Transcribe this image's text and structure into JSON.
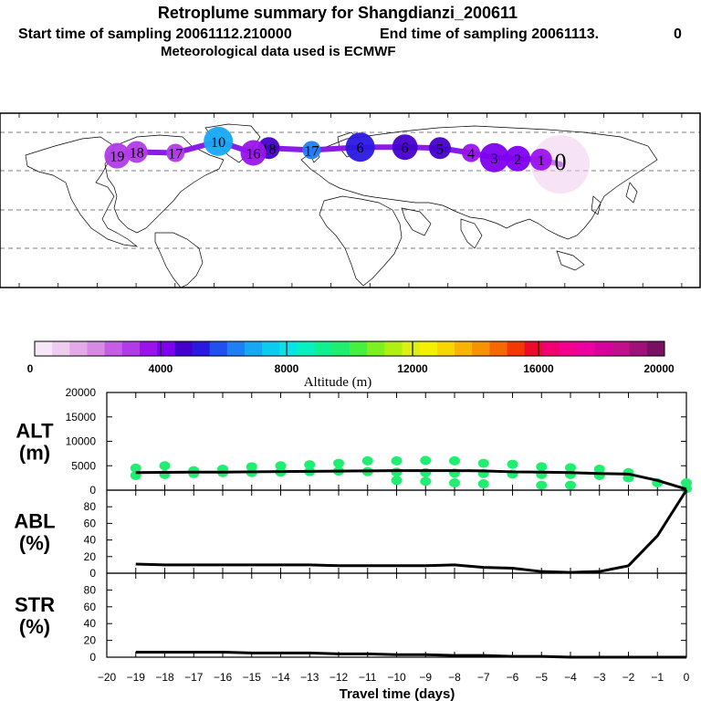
{
  "header": {
    "title": "Retroplume summary for Shangdianzi_200611",
    "start_label": "Start time of sampling 20061112.210000",
    "end_label": "End time of sampling 20061113.",
    "end_suffix": "0",
    "met_label": "Meteorological data used is ECMWF"
  },
  "colorbar": {
    "colors": [
      "#f7e6f7",
      "#eeccef",
      "#e3a9e8",
      "#d68ae4",
      "#c45ee6",
      "#b23be8",
      "#9a13ec",
      "#7f00f0",
      "#4400cc",
      "#2a19e0",
      "#2050f0",
      "#1f80f5",
      "#17a8f5",
      "#0ccbf0",
      "#07e3e6",
      "#07f0c0",
      "#10f090",
      "#20ee70",
      "#45f040",
      "#7ef020",
      "#b0f010",
      "#ddf010",
      "#f5f000",
      "#f8d600",
      "#f8b400",
      "#f89200",
      "#f86800",
      "#f53800",
      "#ee0a2a",
      "#f00070",
      "#f4008e",
      "#ec00a0",
      "#d8009c",
      "#c0108c",
      "#a0107a",
      "#7a1062"
    ],
    "tick_labels": [
      "0",
      "4000",
      "8000",
      "12000",
      "16000",
      "20000"
    ],
    "label": "Altitude (m)"
  },
  "map": {
    "plume_points": [
      {
        "lon": 108,
        "lat": 38,
        "age": "0",
        "alt": 800
      },
      {
        "lon": 98,
        "lat": 43,
        "age": "1",
        "alt": 3800
      },
      {
        "lon": 86,
        "lat": 44,
        "age": "2",
        "alt": 3900
      },
      {
        "lon": 74,
        "lat": 45,
        "age": "3",
        "alt": 3900
      },
      {
        "lon": 62,
        "lat": 50,
        "age": "4",
        "alt": 3700
      },
      {
        "lon": 46,
        "lat": 55,
        "age": "5",
        "alt": 4900
      },
      {
        "lon": 28,
        "lat": 56,
        "age": "6",
        "alt": 4700
      },
      {
        "lon": 5,
        "lat": 56,
        "age": "6",
        "alt": 5500
      },
      {
        "lon": -20,
        "lat": 53,
        "age": "17",
        "alt": 6200
      },
      {
        "lon": -42,
        "lat": 55,
        "age": "18",
        "alt": 4600
      },
      {
        "lon": -50,
        "lat": 50,
        "age": "16",
        "alt": 3500
      },
      {
        "lon": -68,
        "lat": 62,
        "age": "10",
        "alt": 6700
      },
      {
        "lon": -90,
        "lat": 50,
        "age": "17",
        "alt": 3000
      },
      {
        "lon": -110,
        "lat": 51,
        "age": "18",
        "alt": 3200
      },
      {
        "lon": -120,
        "lat": 47,
        "age": "19",
        "alt": 2800
      }
    ]
  },
  "chart_data": [
    {
      "type": "line",
      "panel": "ALT",
      "ylabel": "ALT\n(m)",
      "x": [
        -19,
        -18,
        -17,
        -16,
        -15,
        -14,
        -13,
        -12,
        -11,
        -10,
        -9,
        -8,
        -7,
        -6,
        -5,
        -4,
        -3,
        -2,
        -1,
        0
      ],
      "y": [
        3600,
        3650,
        3700,
        3700,
        3750,
        3800,
        3850,
        3900,
        3950,
        4000,
        4000,
        4000,
        3950,
        3750,
        3700,
        3600,
        3400,
        3300,
        2000,
        200
      ],
      "ylim": [
        0,
        20000
      ],
      "yticks": [
        "0",
        "5000",
        "10000",
        "15000",
        "20000"
      ],
      "scatter": {
        "color": "#20ee70",
        "points": [
          {
            "x": -19,
            "y": 3000
          },
          {
            "x": -19,
            "y": 4500
          },
          {
            "x": -18,
            "y": 3200
          },
          {
            "x": -18,
            "y": 5000
          },
          {
            "x": -17,
            "y": 3400
          },
          {
            "x": -17,
            "y": 4000
          },
          {
            "x": -16,
            "y": 3600
          },
          {
            "x": -16,
            "y": 4300
          },
          {
            "x": -15,
            "y": 3600
          },
          {
            "x": -15,
            "y": 4800
          },
          {
            "x": -14,
            "y": 3700
          },
          {
            "x": -14,
            "y": 5000
          },
          {
            "x": -13,
            "y": 3800
          },
          {
            "x": -13,
            "y": 5200
          },
          {
            "x": -12,
            "y": 3900
          },
          {
            "x": -12,
            "y": 5500
          },
          {
            "x": -11,
            "y": 3800
          },
          {
            "x": -11,
            "y": 6000
          },
          {
            "x": -10,
            "y": 3700
          },
          {
            "x": -10,
            "y": 6000
          },
          {
            "x": -10,
            "y": 2000
          },
          {
            "x": -9,
            "y": 3600
          },
          {
            "x": -9,
            "y": 6100
          },
          {
            "x": -9,
            "y": 1800
          },
          {
            "x": -8,
            "y": 3500
          },
          {
            "x": -8,
            "y": 6000
          },
          {
            "x": -8,
            "y": 1500
          },
          {
            "x": -7,
            "y": 3400
          },
          {
            "x": -7,
            "y": 5500
          },
          {
            "x": -7,
            "y": 1300
          },
          {
            "x": -6,
            "y": 3300
          },
          {
            "x": -6,
            "y": 5300
          },
          {
            "x": -5,
            "y": 3200
          },
          {
            "x": -5,
            "y": 4800
          },
          {
            "x": -5,
            "y": 1000
          },
          {
            "x": -4,
            "y": 3200
          },
          {
            "x": -4,
            "y": 4600
          },
          {
            "x": -4,
            "y": 1000
          },
          {
            "x": -3,
            "y": 3000
          },
          {
            "x": -3,
            "y": 4300
          },
          {
            "x": -2,
            "y": 2500
          },
          {
            "x": -2,
            "y": 3600
          },
          {
            "x": -1,
            "y": 1500
          },
          {
            "x": 0,
            "y": 300
          },
          {
            "x": 0,
            "y": 1500
          }
        ]
      }
    },
    {
      "type": "line",
      "panel": "ABL",
      "ylabel": "ABL\n(%)",
      "x": [
        -19,
        -18,
        -17,
        -16,
        -15,
        -14,
        -13,
        -12,
        -11,
        -10,
        -9,
        -8,
        -7,
        -6,
        -5,
        -4,
        -3,
        -2,
        -1,
        0
      ],
      "y": [
        11,
        10,
        10,
        10,
        10,
        10,
        10,
        9,
        9,
        9,
        9,
        10,
        7,
        6,
        2,
        1,
        2,
        9,
        45,
        100
      ],
      "ylim": [
        0,
        100
      ],
      "yticks": [
        "0",
        "20",
        "40",
        "60",
        "80"
      ]
    },
    {
      "type": "line",
      "panel": "STR",
      "ylabel": "STR\n(%)",
      "xlabel": "Travel time (days)",
      "x": [
        -19,
        -18,
        -17,
        -16,
        -15,
        -14,
        -13,
        -12,
        -11,
        -10,
        -9,
        -8,
        -7,
        -6,
        -5,
        -4,
        -3,
        -2,
        -1,
        0
      ],
      "y": [
        6,
        6,
        6,
        6,
        5,
        5,
        5,
        4,
        4,
        3,
        3,
        2,
        2,
        1,
        1,
        0,
        0,
        0,
        0,
        0
      ],
      "ylim": [
        0,
        100
      ],
      "yticks": [
        "0",
        "20",
        "40",
        "60",
        "80"
      ],
      "xlim": [
        -20,
        0
      ],
      "xticks": [
        "−20",
        "−19",
        "−18",
        "−17",
        "−16",
        "−15",
        "−14",
        "−13",
        "−12",
        "−11",
        "−10",
        "−9",
        "−8",
        "−7",
        "−6",
        "−5",
        "−4",
        "−3",
        "−2",
        "−1",
        "0"
      ]
    }
  ]
}
